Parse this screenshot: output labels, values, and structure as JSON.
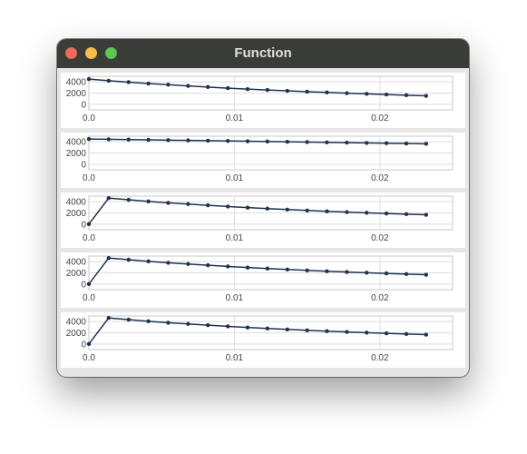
{
  "window": {
    "title": "Function"
  },
  "chart_data": [
    {
      "type": "line",
      "x": [
        0.0,
        0.00136,
        0.00273,
        0.00409,
        0.00545,
        0.00682,
        0.00818,
        0.00955,
        0.01091,
        0.01227,
        0.01364,
        0.015,
        0.01636,
        0.01773,
        0.01909,
        0.02045,
        0.02182,
        0.02318
      ],
      "series": [
        {
          "values": [
            4500,
            4200,
            3950,
            3700,
            3500,
            3280,
            3080,
            2880,
            2700,
            2550,
            2400,
            2250,
            2120,
            1980,
            1860,
            1740,
            1620,
            1510
          ]
        }
      ],
      "xticks": [
        "0.0",
        "0.01",
        "0.02"
      ],
      "yticks": [
        "4000",
        "2000",
        "0"
      ],
      "xlim": [
        0,
        0.025
      ],
      "ylim": [
        -1000,
        5000
      ],
      "grid": true
    },
    {
      "type": "line",
      "x": [
        0.0,
        0.00136,
        0.00273,
        0.00409,
        0.00545,
        0.00682,
        0.00818,
        0.00955,
        0.01091,
        0.01227,
        0.01364,
        0.015,
        0.01636,
        0.01773,
        0.01909,
        0.02045,
        0.02182,
        0.02318
      ],
      "series": [
        {
          "values": [
            4500,
            4450,
            4400,
            4350,
            4300,
            4250,
            4200,
            4150,
            4100,
            4050,
            4000,
            3950,
            3900,
            3850,
            3800,
            3750,
            3700,
            3650
          ]
        }
      ],
      "xticks": [
        "0.0",
        "0.01",
        "0.02"
      ],
      "yticks": [
        "4000",
        "2000",
        "0"
      ],
      "xlim": [
        0,
        0.025
      ],
      "ylim": [
        -1000,
        5000
      ],
      "grid": true
    },
    {
      "type": "line",
      "x": [
        0.0,
        0.00136,
        0.00273,
        0.00409,
        0.00545,
        0.00682,
        0.00818,
        0.00955,
        0.01091,
        0.01227,
        0.01364,
        0.015,
        0.01636,
        0.01773,
        0.01909,
        0.02045,
        0.02182,
        0.02318
      ],
      "series": [
        {
          "values": [
            0,
            4650,
            4350,
            4050,
            3800,
            3580,
            3360,
            3150,
            2950,
            2770,
            2600,
            2440,
            2290,
            2150,
            2020,
            1900,
            1780,
            1670
          ]
        }
      ],
      "xticks": [
        "0.0",
        "0.01",
        "0.02"
      ],
      "yticks": [
        "4000",
        "2000",
        "0"
      ],
      "xlim": [
        0,
        0.025
      ],
      "ylim": [
        -1000,
        5000
      ],
      "grid": true
    },
    {
      "type": "line",
      "x": [
        0.0,
        0.00136,
        0.00273,
        0.00409,
        0.00545,
        0.00682,
        0.00818,
        0.00955,
        0.01091,
        0.01227,
        0.01364,
        0.015,
        0.01636,
        0.01773,
        0.01909,
        0.02045,
        0.02182,
        0.02318
      ],
      "series": [
        {
          "values": [
            0,
            4650,
            4350,
            4050,
            3800,
            3580,
            3360,
            3150,
            2950,
            2770,
            2600,
            2440,
            2290,
            2150,
            2020,
            1900,
            1780,
            1670
          ]
        }
      ],
      "xticks": [
        "0.0",
        "0.01",
        "0.02"
      ],
      "yticks": [
        "4000",
        "2000",
        "0"
      ],
      "xlim": [
        0,
        0.025
      ],
      "ylim": [
        -1000,
        5000
      ],
      "grid": true
    },
    {
      "type": "line",
      "x": [
        0.0,
        0.00136,
        0.00273,
        0.00409,
        0.00545,
        0.00682,
        0.00818,
        0.00955,
        0.01091,
        0.01227,
        0.01364,
        0.015,
        0.01636,
        0.01773,
        0.01909,
        0.02045,
        0.02182,
        0.02318
      ],
      "series": [
        {
          "values": [
            0,
            4650,
            4350,
            4050,
            3800,
            3580,
            3360,
            3150,
            2950,
            2770,
            2600,
            2440,
            2290,
            2150,
            2020,
            1900,
            1780,
            1670
          ]
        }
      ],
      "xticks": [
        "0.0",
        "0.01",
        "0.02"
      ],
      "yticks": [
        "4000",
        "2000",
        "0"
      ],
      "xlim": [
        0,
        0.025
      ],
      "ylim": [
        -1000,
        5000
      ],
      "grid": true
    }
  ]
}
